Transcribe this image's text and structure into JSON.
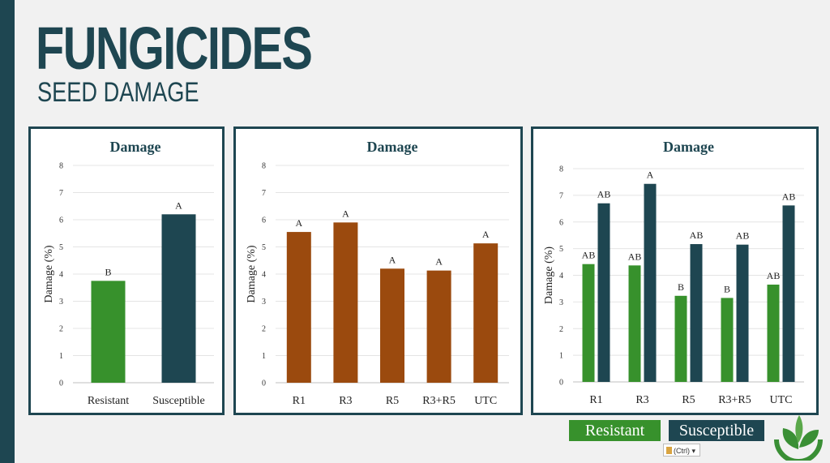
{
  "header": {
    "title": "FUNGICIDES",
    "subtitle": "SEED DAMAGE"
  },
  "legend": {
    "resistant": "Resistant",
    "susceptible": "Susceptible"
  },
  "paste_tag": "(Ctrl)",
  "colors": {
    "accent": "#1e4651",
    "resistant": "#37912c",
    "susceptible": "#1e4651",
    "timing": "#9b4a0e"
  },
  "chart_data": [
    {
      "type": "bar",
      "title": "Damage",
      "ylabel": "Damage (%)",
      "ylim": [
        0,
        8
      ],
      "yticks": [
        0,
        1,
        2,
        3,
        4,
        5,
        6,
        7,
        8
      ],
      "categories": [
        "Resistant",
        "Susceptible"
      ],
      "series": [
        {
          "values": [
            3.75,
            6.2
          ],
          "labels": [
            "B",
            "A"
          ],
          "colors": [
            "#37912c",
            "#1e4651"
          ]
        }
      ],
      "grid": true
    },
    {
      "type": "bar",
      "title": "Damage",
      "ylabel": "Damage (%)",
      "ylim": [
        0,
        8
      ],
      "yticks": [
        0,
        1,
        2,
        3,
        4,
        5,
        6,
        7,
        8
      ],
      "categories": [
        "R1",
        "R3",
        "R5",
        "R3+R5",
        "UTC"
      ],
      "series": [
        {
          "values": [
            5.55,
            5.9,
            4.2,
            4.13,
            5.13
          ],
          "labels": [
            "A",
            "A",
            "A",
            "A",
            "A"
          ],
          "colors": [
            "#9b4a0e",
            "#9b4a0e",
            "#9b4a0e",
            "#9b4a0e",
            "#9b4a0e"
          ]
        }
      ],
      "grid": true
    },
    {
      "type": "bar",
      "title": "Damage",
      "ylabel": "Damage (%)",
      "ylim": [
        0,
        8
      ],
      "yticks": [
        0,
        1,
        2,
        3,
        4,
        5,
        6,
        7,
        8
      ],
      "categories": [
        "R1",
        "R3",
        "R5",
        "R3+R5",
        "UTC"
      ],
      "series": [
        {
          "name": "Resistant",
          "values": [
            4.42,
            4.37,
            3.23,
            3.15,
            3.65
          ],
          "labels": [
            "AB",
            "AB",
            "B",
            "B",
            "AB"
          ],
          "color": "#37912c"
        },
        {
          "name": "Susceptible",
          "values": [
            6.7,
            7.43,
            5.17,
            5.15,
            6.62
          ],
          "labels": [
            "AB",
            "A",
            "AB",
            "AB",
            "AB"
          ],
          "color": "#1e4651"
        }
      ],
      "grid": true
    }
  ]
}
